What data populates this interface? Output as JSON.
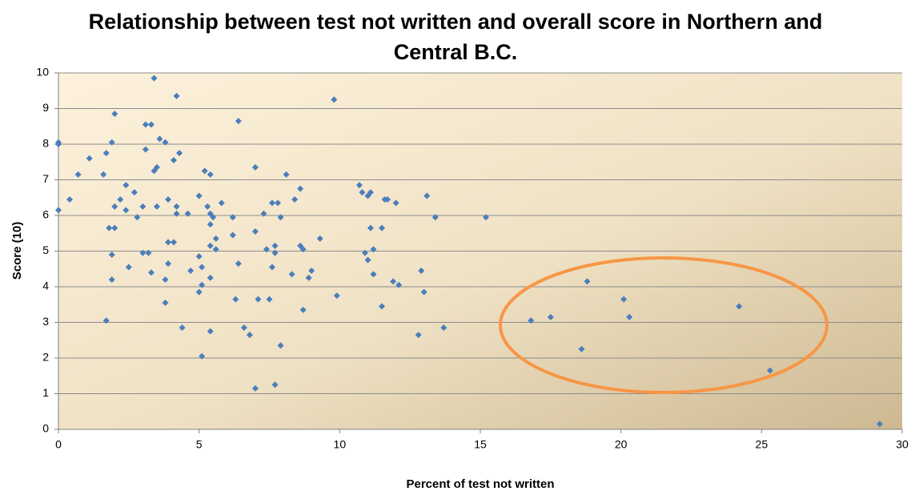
{
  "chart_data": {
    "type": "scatter",
    "title": "Relationship between test not written and overall score in Northern and Central B.C.",
    "x_label": "Percent of test not written",
    "y_label": "Score (10)",
    "color": "#4a7ebb",
    "grid": true,
    "xlim": [
      0,
      30
    ],
    "xticks": [
      0,
      5,
      10,
      15,
      20,
      25,
      30
    ],
    "ylim": [
      0,
      10
    ],
    "yticks": [
      0,
      1,
      2,
      3,
      4,
      5,
      6,
      7,
      8,
      9,
      10
    ],
    "x": [
      0,
      0,
      0,
      0.4,
      0.7,
      1.1,
      1.6,
      1.7,
      1.7,
      1.8,
      1.9,
      2.0,
      1.9,
      1.9,
      2.0,
      2.0,
      2.2,
      2.4,
      2.4,
      2.5,
      2.7,
      2.8,
      3.0,
      3.0,
      3.1,
      3.1,
      3.3,
      3.2,
      3.3,
      3.4,
      3.4,
      3.5,
      3.5,
      3.6,
      3.8,
      3.8,
      3.8,
      3.9,
      3.9,
      3.9,
      4.1,
      4.1,
      4.2,
      4.2,
      4.2,
      4.3,
      4.4,
      4.6,
      4.7,
      5.0,
      5.0,
      5.0,
      5.1,
      5.1,
      5.1,
      5.2,
      5.3,
      5.4,
      5.4,
      5.4,
      5.4,
      5.4,
      5.4,
      5.5,
      5.6,
      5.6,
      5.8,
      6.2,
      6.2,
      6.3,
      6.4,
      6.4,
      6.6,
      6.8,
      7.0,
      7.0,
      7.0,
      7.1,
      7.3,
      7.4,
      7.5,
      7.6,
      7.6,
      7.7,
      7.7,
      7.7,
      7.8,
      7.9,
      7.9,
      8.1,
      8.3,
      8.4,
      8.6,
      8.6,
      8.7,
      8.7,
      8.9,
      9.0,
      9.3,
      9.8,
      9.9,
      10.7,
      10.8,
      10.9,
      11.0,
      11.0,
      11.1,
      11.1,
      11.2,
      11.2,
      11.5,
      11.5,
      11.6,
      11.7,
      11.9,
      12.0,
      12.1,
      12.8,
      12.9,
      13.0,
      13.1,
      13.4,
      13.7,
      15.2,
      16.8,
      17.5,
      18.6,
      18.8,
      20.1,
      20.3,
      24.2,
      25.3,
      29.2
    ],
    "values": [
      8.0,
      8.05,
      6.15,
      6.45,
      7.15,
      7.6,
      7.15,
      7.75,
      3.05,
      5.65,
      8.05,
      8.85,
      4.9,
      4.2,
      6.25,
      5.65,
      6.45,
      6.85,
      6.15,
      4.55,
      6.65,
      5.95,
      6.25,
      4.95,
      7.85,
      8.55,
      8.55,
      4.95,
      4.4,
      9.85,
      7.25,
      7.35,
      6.25,
      8.15,
      8.05,
      4.2,
      3.55,
      6.45,
      5.25,
      4.65,
      7.55,
      5.25,
      9.35,
      6.25,
      6.05,
      7.75,
      2.85,
      6.05,
      4.45,
      6.55,
      4.85,
      3.85,
      4.55,
      4.05,
      2.05,
      7.25,
      6.25,
      7.15,
      6.05,
      5.75,
      5.15,
      4.25,
      2.75,
      5.95,
      5.35,
      5.05,
      6.35,
      5.95,
      5.45,
      3.65,
      4.65,
      8.65,
      2.85,
      2.65,
      7.35,
      5.55,
      1.15,
      3.65,
      6.05,
      5.05,
      3.65,
      6.35,
      4.55,
      5.15,
      4.95,
      1.25,
      6.35,
      5.95,
      2.35,
      7.15,
      4.35,
      6.45,
      6.75,
      5.15,
      5.05,
      3.35,
      4.25,
      4.45,
      5.35,
      9.25,
      3.75,
      6.85,
      6.65,
      4.95,
      6.55,
      4.75,
      5.65,
      6.65,
      5.05,
      4.35,
      5.65,
      3.45,
      6.45,
      6.45,
      4.15,
      6.35,
      4.05,
      2.65,
      4.45,
      3.85,
      6.55,
      5.95,
      2.85,
      5.95,
      3.05,
      3.15,
      2.25,
      4.15,
      3.65,
      3.15,
      3.45,
      1.65,
      0.15
    ]
  }
}
